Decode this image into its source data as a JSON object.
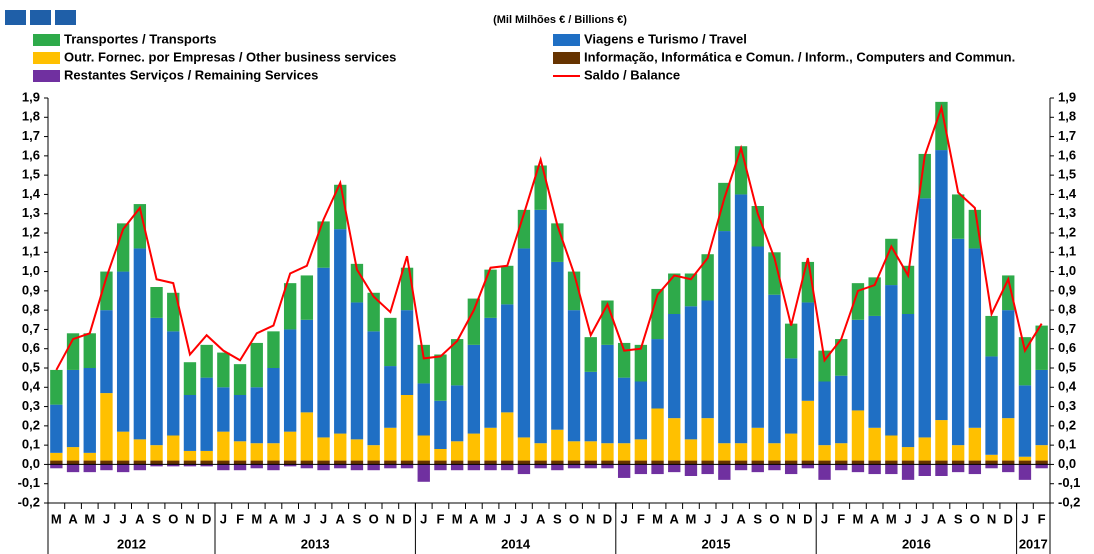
{
  "chart_data": {
    "type": "bar",
    "stacked": true,
    "title": "(Mil Milhões € / Billions €)",
    "categories": [
      "M",
      "A",
      "M",
      "J",
      "J",
      "A",
      "S",
      "O",
      "N",
      "D",
      "J",
      "F",
      "M",
      "A",
      "M",
      "J",
      "J",
      "A",
      "S",
      "O",
      "N",
      "D",
      "J",
      "F",
      "M",
      "A",
      "M",
      "J",
      "J",
      "A",
      "S",
      "O",
      "N",
      "D",
      "J",
      "F",
      "M",
      "A",
      "M",
      "J",
      "J",
      "A",
      "S",
      "O",
      "N",
      "D",
      "J",
      "F",
      "M",
      "A",
      "M",
      "J",
      "J",
      "A",
      "S",
      "O",
      "N",
      "D",
      "J",
      "F"
    ],
    "year_labels": [
      "2012",
      null,
      null,
      null,
      null,
      null,
      null,
      null,
      null,
      null,
      "2013",
      null,
      null,
      null,
      null,
      null,
      null,
      null,
      null,
      null,
      null,
      null,
      "2014",
      null,
      null,
      null,
      null,
      null,
      null,
      null,
      null,
      null,
      null,
      null,
      "2015",
      null,
      null,
      null,
      null,
      null,
      null,
      null,
      null,
      null,
      null,
      null,
      "2016",
      null,
      null,
      null,
      null,
      null,
      null,
      null,
      null,
      null,
      null,
      null,
      "2017",
      null
    ],
    "series": [
      {
        "name": "Transportes / Transports",
        "color": "#2eaa4a",
        "values": [
          0.18,
          0.19,
          0.18,
          0.2,
          0.25,
          0.23,
          0.16,
          0.2,
          0.17,
          0.17,
          0.18,
          0.16,
          0.23,
          0.19,
          0.24,
          0.23,
          0.24,
          0.23,
          0.2,
          0.2,
          0.25,
          0.22,
          0.2,
          0.24,
          0.24,
          0.24,
          0.25,
          0.2,
          0.2,
          0.23,
          0.2,
          0.2,
          0.18,
          0.23,
          0.18,
          0.19,
          0.26,
          0.21,
          0.17,
          0.24,
          0.25,
          0.25,
          0.21,
          0.22,
          0.18,
          0.21,
          0.16,
          0.19,
          0.19,
          0.2,
          0.24,
          0.25,
          0.23,
          0.25,
          0.23,
          0.2,
          0.21,
          0.18,
          0.25,
          0.23
        ]
      },
      {
        "name": "Viagens e Turismo / Travel",
        "color": "#1f6fc4",
        "values": [
          0.25,
          0.4,
          0.44,
          0.43,
          0.83,
          0.99,
          0.66,
          0.54,
          0.29,
          0.38,
          0.23,
          0.24,
          0.29,
          0.39,
          0.53,
          0.48,
          0.88,
          1.06,
          0.71,
          0.59,
          0.32,
          0.44,
          0.27,
          0.25,
          0.29,
          0.46,
          0.57,
          0.56,
          0.98,
          1.21,
          0.87,
          0.68,
          0.36,
          0.51,
          0.34,
          0.3,
          0.36,
          0.54,
          0.69,
          0.61,
          1.1,
          1.29,
          0.94,
          0.77,
          0.39,
          0.51,
          0.33,
          0.35,
          0.47,
          0.58,
          0.78,
          0.69,
          1.24,
          1.4,
          1.07,
          0.93,
          0.51,
          0.56,
          0.37,
          0.39
        ]
      },
      {
        "name": "Outr. Fornec. por Empresas  / Other business services",
        "color": "#ffc000",
        "values": [
          0.04,
          0.07,
          0.04,
          0.35,
          0.15,
          0.11,
          0.08,
          0.13,
          0.05,
          0.05,
          0.15,
          0.1,
          0.09,
          0.09,
          0.15,
          0.25,
          0.12,
          0.14,
          0.11,
          0.08,
          0.17,
          0.34,
          0.13,
          0.06,
          0.1,
          0.14,
          0.17,
          0.25,
          0.12,
          0.09,
          0.16,
          0.1,
          0.1,
          0.09,
          0.09,
          0.11,
          0.27,
          0.22,
          0.11,
          0.22,
          0.09,
          0.09,
          0.17,
          0.09,
          0.14,
          0.31,
          0.08,
          0.09,
          0.26,
          0.17,
          0.13,
          0.07,
          0.12,
          0.21,
          0.08,
          0.17,
          0.03,
          0.22,
          0.02,
          0.08
        ]
      },
      {
        "name": "Informação, Informática e Comun. / Inform., Computers and Commun.",
        "color": "#663300",
        "values": [
          0.02,
          0.02,
          0.02,
          0.02,
          0.02,
          0.02,
          0.02,
          0.02,
          0.02,
          0.02,
          0.02,
          0.02,
          0.02,
          0.02,
          0.02,
          0.02,
          0.02,
          0.02,
          0.02,
          0.02,
          0.02,
          0.02,
          0.02,
          0.02,
          0.02,
          0.02,
          0.02,
          0.02,
          0.02,
          0.02,
          0.02,
          0.02,
          0.02,
          0.02,
          0.02,
          0.02,
          0.02,
          0.02,
          0.02,
          0.02,
          0.02,
          0.02,
          0.02,
          0.02,
          0.02,
          0.02,
          0.02,
          0.02,
          0.02,
          0.02,
          0.02,
          0.02,
          0.02,
          0.02,
          0.02,
          0.02,
          0.02,
          0.02,
          0.02,
          0.02
        ]
      },
      {
        "name": "Restantes Serviços / Remaining Services",
        "color": "#7030a0",
        "values": [
          -0.02,
          -0.04,
          -0.04,
          -0.03,
          -0.04,
          -0.03,
          -0.01,
          -0.01,
          -0.01,
          -0.01,
          -0.03,
          -0.03,
          -0.02,
          -0.03,
          -0.01,
          -0.02,
          -0.03,
          -0.02,
          -0.03,
          -0.03,
          -0.02,
          -0.02,
          -0.09,
          -0.03,
          -0.03,
          -0.03,
          -0.03,
          -0.03,
          -0.05,
          -0.02,
          -0.03,
          -0.02,
          -0.02,
          -0.02,
          -0.07,
          -0.05,
          -0.05,
          -0.04,
          -0.06,
          -0.05,
          -0.08,
          -0.03,
          -0.04,
          -0.03,
          -0.05,
          -0.02,
          -0.08,
          -0.03,
          -0.04,
          -0.05,
          -0.05,
          -0.08,
          -0.06,
          -0.06,
          -0.04,
          -0.05,
          -0.02,
          -0.04,
          -0.08,
          -0.02
        ]
      },
      {
        "name": "Saldo / Balance",
        "color": "#ff0000",
        "type": "line",
        "values": [
          0.49,
          0.65,
          0.68,
          0.97,
          1.22,
          1.33,
          0.96,
          0.94,
          0.57,
          0.67,
          0.59,
          0.54,
          0.68,
          0.72,
          0.99,
          1.03,
          1.27,
          1.46,
          1.01,
          0.87,
          0.79,
          1.08,
          0.55,
          0.56,
          0.64,
          0.8,
          1.02,
          1.03,
          1.3,
          1.58,
          1.24,
          0.99,
          0.67,
          0.83,
          0.59,
          0.6,
          0.88,
          0.98,
          0.96,
          1.07,
          1.38,
          1.64,
          1.3,
          1.07,
          0.72,
          1.07,
          0.54,
          0.65,
          0.9,
          0.93,
          1.13,
          0.98,
          1.6,
          1.85,
          1.41,
          1.33,
          0.78,
          0.96,
          0.59,
          0.73
        ]
      }
    ],
    "ylim": [
      -0.2,
      1.9
    ],
    "yticks": [
      {
        "value": -0.2,
        "label": "-0,2"
      },
      {
        "value": -0.1,
        "label": "-0,1"
      },
      {
        "value": 0,
        "label": "0,0"
      },
      {
        "value": 0.1,
        "label": "0,1"
      },
      {
        "value": 0.2,
        "label": "0,2"
      },
      {
        "value": 0.3,
        "label": "0,3"
      },
      {
        "value": 0.4,
        "label": "0,4"
      },
      {
        "value": 0.5,
        "label": "0,5"
      },
      {
        "value": 0.6,
        "label": "0,6"
      },
      {
        "value": 0.7,
        "label": "0,7"
      },
      {
        "value": 0.8,
        "label": "0,8"
      },
      {
        "value": 0.9,
        "label": "0,9"
      },
      {
        "value": 1.0,
        "label": "1,0"
      },
      {
        "value": 1.1,
        "label": "1,1"
      },
      {
        "value": 1.2,
        "label": "1,2"
      },
      {
        "value": 1.3,
        "label": "1,3"
      },
      {
        "value": 1.4,
        "label": "1,4"
      },
      {
        "value": 1.5,
        "label": "1,5"
      },
      {
        "value": 1.6,
        "label": "1,6"
      },
      {
        "value": 1.7,
        "label": "1,7"
      },
      {
        "value": 1.8,
        "label": "1,8"
      },
      {
        "value": 1.9,
        "label": "1,9"
      }
    ],
    "grid": false
  }
}
